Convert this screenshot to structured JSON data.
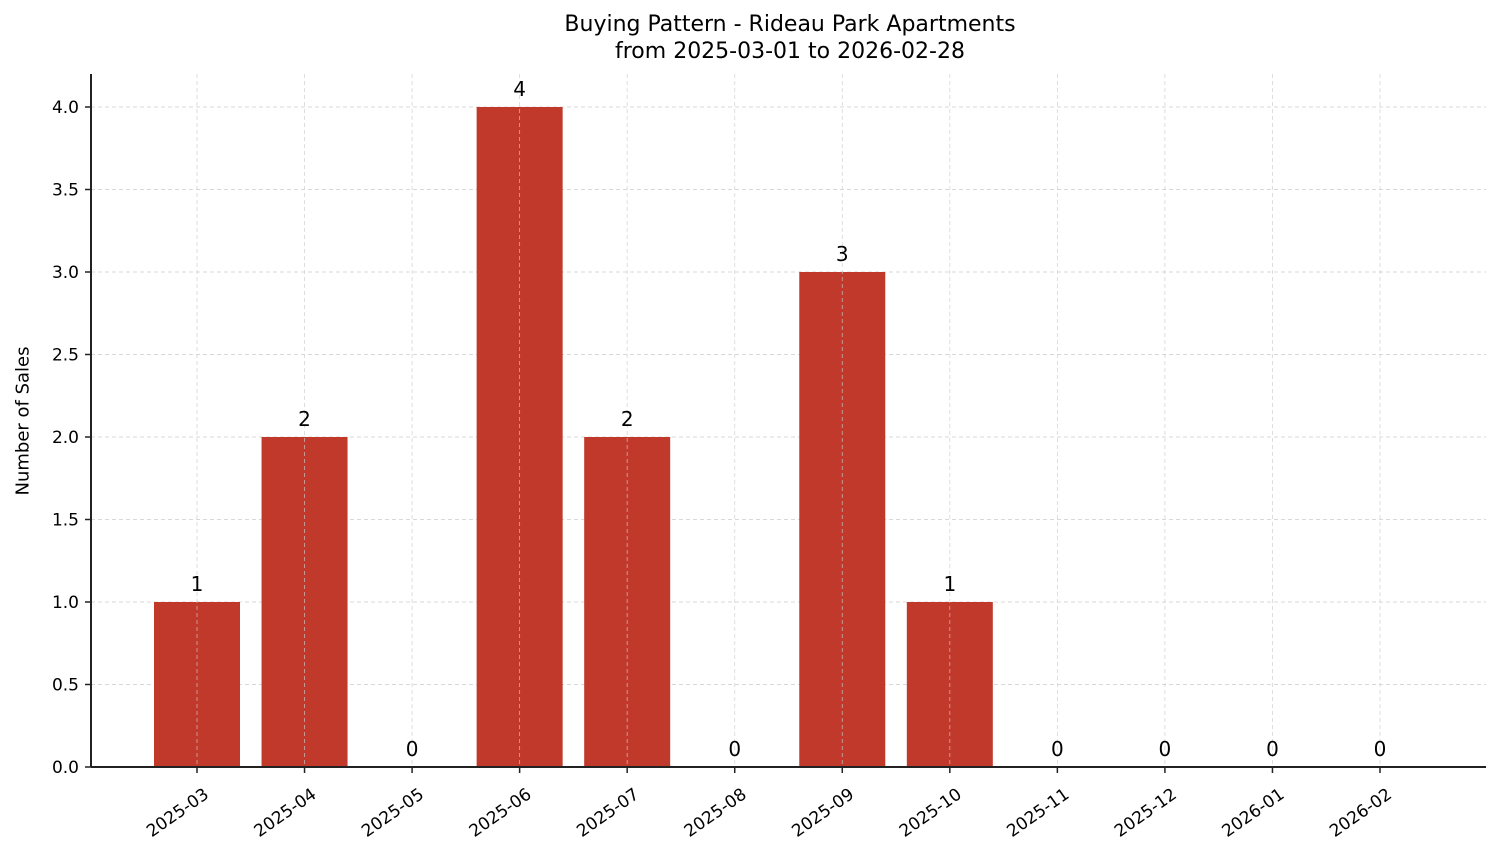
{
  "title": {
    "line1": "Buying Pattern - Rideau Park Apartments",
    "line2": "from 2025-03-01 to 2026-02-28"
  },
  "colors": {
    "bar": "#c0392b",
    "grid": "#cccccc",
    "axis": "#222222"
  },
  "chart_data": {
    "type": "bar",
    "title": "Buying Pattern - Rideau Park Apartments\nfrom 2025-03-01 to 2026-02-28",
    "xlabel": "",
    "ylabel": "Number of Sales",
    "categories": [
      "2025-03",
      "2025-04",
      "2025-05",
      "2025-06",
      "2025-07",
      "2025-08",
      "2025-09",
      "2025-10",
      "2025-11",
      "2025-12",
      "2026-01",
      "2026-02"
    ],
    "values": [
      1,
      2,
      0,
      4,
      2,
      0,
      3,
      1,
      0,
      0,
      0,
      0
    ],
    "data_labels": [
      "1",
      "2",
      "0",
      "4",
      "2",
      "0",
      "3",
      "1",
      "0",
      "0",
      "0",
      "0"
    ],
    "yticks": [
      "0.0",
      "0.5",
      "1.0",
      "1.5",
      "2.0",
      "2.5",
      "3.0",
      "3.5",
      "4.0"
    ],
    "ylim": [
      0,
      4.2
    ],
    "grid": true,
    "grid_style": "dashed",
    "legend": null
  }
}
